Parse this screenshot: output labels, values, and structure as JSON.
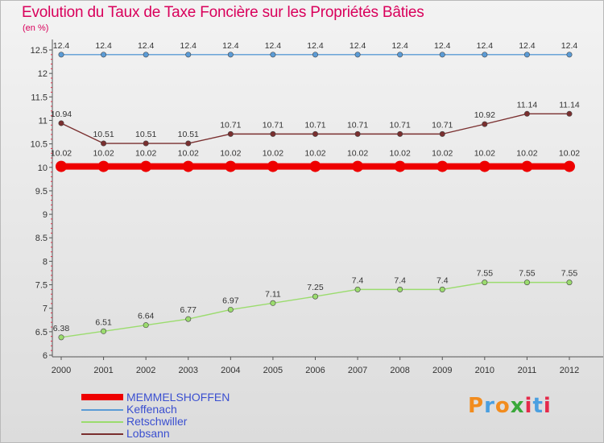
{
  "title": "Evolution du Taux de Taxe Foncière sur les Propriétés Bâties",
  "unit_label": "(en %)",
  "chart_data": {
    "type": "line",
    "title": "Evolution du Taux de Taxe Foncière sur les Propriétés Bâties",
    "ylabel": "(en %)",
    "xlabel": "",
    "ylim": [
      6,
      12.5
    ],
    "ytick_step": 0.5,
    "x": [
      "2000",
      "2001",
      "2002",
      "2003",
      "2004",
      "2005",
      "2006",
      "2007",
      "2008",
      "2009",
      "2010",
      "2011",
      "2012"
    ],
    "yticks": [
      "6",
      "6.5",
      "7",
      "7.5",
      "8",
      "8.5",
      "9",
      "9.5",
      "10",
      "10.5",
      "11",
      "11.5",
      "12",
      "12.5"
    ],
    "series": [
      {
        "name": "MEMMELSHOFFEN",
        "color": "#ee0000",
        "values": [
          10.02,
          10.02,
          10.02,
          10.02,
          10.02,
          10.02,
          10.02,
          10.02,
          10.02,
          10.02,
          10.02,
          10.02,
          10.02
        ],
        "labels": [
          "10.02",
          "10.02",
          "10.02",
          "10.02",
          "10.02",
          "10.02",
          "10.02",
          "10.02",
          "10.02",
          "10.02",
          "10.02",
          "10.02",
          "10.02"
        ]
      },
      {
        "name": "Keffenach",
        "color": "#5b9bd5",
        "values": [
          12.4,
          12.4,
          12.4,
          12.4,
          12.4,
          12.4,
          12.4,
          12.4,
          12.4,
          12.4,
          12.4,
          12.4,
          12.4
        ],
        "labels": [
          "12.4",
          "12.4",
          "12.4",
          "12.4",
          "12.4",
          "12.4",
          "12.4",
          "12.4",
          "12.4",
          "12.4",
          "12.4",
          "12.4",
          "12.4"
        ]
      },
      {
        "name": "Retschwiller",
        "color": "#9bdc6e",
        "values": [
          6.38,
          6.51,
          6.64,
          6.77,
          6.97,
          7.11,
          7.25,
          7.4,
          7.4,
          7.4,
          7.55,
          7.55,
          7.55
        ],
        "labels": [
          "6.38",
          "6.51",
          "6.64",
          "6.77",
          "6.97",
          "7.11",
          "7.25",
          "7.4",
          "7.4",
          "7.4",
          "7.55",
          "7.55",
          "7.55"
        ]
      },
      {
        "name": "Lobsann",
        "color": "#7a2f2f",
        "values": [
          10.94,
          10.51,
          10.51,
          10.51,
          10.71,
          10.71,
          10.71,
          10.71,
          10.71,
          10.71,
          10.92,
          11.14,
          11.14
        ],
        "labels": [
          "10.94",
          "10.51",
          "10.51",
          "10.51",
          "10.71",
          "10.71",
          "10.71",
          "10.71",
          "10.71",
          "10.71",
          "10.92",
          "11.14",
          "11.14"
        ]
      }
    ]
  },
  "legend": [
    {
      "label": "MEMMELSHOFFEN",
      "color": "#ee0000"
    },
    {
      "label": "Keffenach",
      "color": "#5b9bd5"
    },
    {
      "label": "Retschwiller",
      "color": "#9bdc6e"
    },
    {
      "label": "Lobsann",
      "color": "#7a2f2f"
    }
  ],
  "logo": {
    "letters": [
      "P",
      "r",
      "o",
      "x",
      "i",
      "t",
      "i"
    ],
    "colors": [
      "#f28c1e",
      "#4a9fe0",
      "#f28c1e",
      "#3aa83a",
      "#e52a4a",
      "#4a9fe0",
      "#e52a4a"
    ]
  }
}
